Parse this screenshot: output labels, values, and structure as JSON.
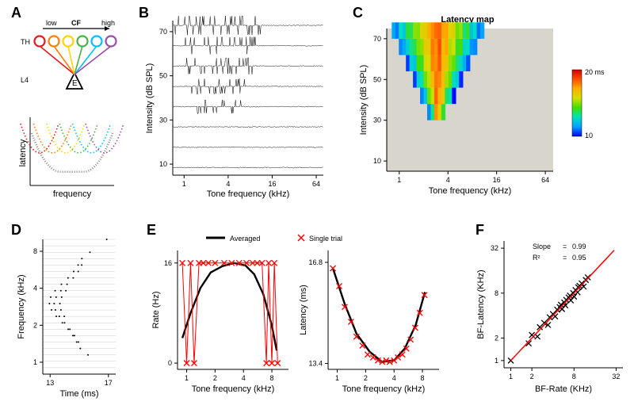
{
  "panelA": {
    "label": "A",
    "top_diagram": {
      "arrow_label": "CF",
      "low_label": "low",
      "high_label": "high",
      "row_labels": [
        "TH",
        "L4"
      ],
      "node_colors": [
        "#e41a1c",
        "#ff7f00",
        "#ffd500",
        "#4daf4a",
        "#00bfff",
        "#984ea3"
      ],
      "triangle_label": "E",
      "triangle_color": "#000000"
    },
    "bottom_diagram": {
      "xlabel": "frequency",
      "ylabel": "latency",
      "curve_colors": [
        "#e41a1c",
        "#ff7f00",
        "#ffd500",
        "#4daf4a",
        "#00bfff",
        "#984ea3"
      ],
      "envelope_color": "#888888"
    }
  },
  "panelB": {
    "label": "B",
    "xlabel": "Tone frequency (kHz)",
    "ylabel": "Intensity (dB SPL)",
    "x_ticks": [
      1,
      4,
      16,
      64
    ],
    "y_ticks": [
      10,
      30,
      50,
      70
    ],
    "x_log": true,
    "xlim": [
      0.7,
      80
    ],
    "ylim": [
      5,
      75
    ],
    "rows": [
      70,
      60,
      50,
      40,
      30,
      20,
      10,
      0
    ],
    "trace_color": "#000000",
    "background": "#ffffff"
  },
  "panelC": {
    "label": "C",
    "title": "Latency map",
    "xlabel": "Tone frequency (kHz)",
    "ylabel": "Intensity (dB SPL)",
    "x_ticks": [
      1,
      4,
      16,
      64
    ],
    "y_ticks": [
      10,
      30,
      50,
      70
    ],
    "x_log": true,
    "xlim": [
      0.7,
      80
    ],
    "ylim": [
      5,
      75
    ],
    "background_mask": "#d8d5cc",
    "cbar_labels": [
      "10",
      "20 ms"
    ],
    "cbar_stops": [
      "#0000ff",
      "#00a0ff",
      "#00e0c0",
      "#40e000",
      "#d0e000",
      "#ffb000",
      "#ff5000",
      "#d00000"
    ]
  },
  "panelD": {
    "label": "D",
    "xlabel": "Time (ms)",
    "ylabel": "Frequency (kHz)",
    "x_ticks": [
      13,
      17
    ],
    "y_ticks": [
      1,
      2,
      4,
      8
    ],
    "y_log": true,
    "xlim": [
      12.5,
      17.5
    ],
    "ylim": [
      0.8,
      10
    ],
    "dot_color": "#000000",
    "grid_color": "#cccccc",
    "n_rows": 22
  },
  "panelE": {
    "label": "E",
    "legend": {
      "averaged_label": "Averaged",
      "single_label": "Single trial",
      "avg_color": "#000000",
      "single_color": "#ff0000"
    },
    "left": {
      "xlabel": "Tone frequency (kHz)",
      "ylabel": "Rate (Hz)",
      "x_ticks": [
        1,
        2,
        4,
        8
      ],
      "y_ticks": [
        0,
        16
      ],
      "x_log": true,
      "xlim": [
        0.8,
        12
      ],
      "ylim": [
        -1,
        18
      ],
      "avg_curve": [
        [
          0.9,
          4
        ],
        [
          1.1,
          8
        ],
        [
          1.4,
          12
        ],
        [
          1.8,
          14.5
        ],
        [
          2.4,
          15.5
        ],
        [
          3.2,
          16
        ],
        [
          4.2,
          15.6
        ],
        [
          5.2,
          14.2
        ],
        [
          6.5,
          11
        ],
        [
          8,
          6
        ],
        [
          9,
          2
        ]
      ],
      "single_curve": [
        [
          0.9,
          16
        ],
        [
          1.0,
          0
        ],
        [
          1.1,
          16
        ],
        [
          1.2,
          0
        ],
        [
          1.35,
          16
        ],
        [
          1.5,
          16
        ],
        [
          1.7,
          16
        ],
        [
          2.0,
          16
        ],
        [
          2.5,
          16
        ],
        [
          3.0,
          16
        ],
        [
          3.6,
          16
        ],
        [
          4.3,
          16
        ],
        [
          5.0,
          16
        ],
        [
          5.6,
          16
        ],
        [
          6.3,
          16
        ],
        [
          7.0,
          0
        ],
        [
          7.4,
          16
        ],
        [
          8.0,
          0
        ],
        [
          8.5,
          16
        ],
        [
          9.2,
          0
        ]
      ]
    },
    "right": {
      "xlabel": "Tone frequency (kHz)",
      "ylabel": "Latency (ms)",
      "x_ticks": [
        1,
        2,
        4,
        8
      ],
      "y_ticks": [
        13.4,
        16.8
      ],
      "x_log": true,
      "xlim": [
        0.8,
        12
      ],
      "ylim": [
        13.2,
        17.2
      ],
      "avg_curve": [
        [
          0.9,
          16.6
        ],
        [
          1.2,
          15.4
        ],
        [
          1.6,
          14.4
        ],
        [
          2.2,
          13.8
        ],
        [
          3.0,
          13.45
        ],
        [
          4.0,
          13.5
        ],
        [
          5.2,
          13.9
        ],
        [
          6.8,
          14.7
        ],
        [
          8.5,
          15.8
        ]
      ],
      "single_points": [
        [
          0.9,
          16.6
        ],
        [
          1.05,
          16.0
        ],
        [
          1.2,
          15.3
        ],
        [
          1.4,
          14.8
        ],
        [
          1.6,
          14.3
        ],
        [
          1.85,
          14.0
        ],
        [
          2.1,
          13.7
        ],
        [
          2.4,
          13.6
        ],
        [
          2.7,
          13.5
        ],
        [
          3.0,
          13.45
        ],
        [
          3.3,
          13.5
        ],
        [
          3.6,
          13.45
        ],
        [
          4.0,
          13.5
        ],
        [
          4.4,
          13.6
        ],
        [
          4.9,
          13.7
        ],
        [
          5.4,
          13.9
        ],
        [
          6.0,
          14.2
        ],
        [
          6.7,
          14.6
        ],
        [
          7.5,
          15.1
        ],
        [
          8.4,
          15.7
        ]
      ]
    }
  },
  "panelF": {
    "label": "F",
    "xlabel": "BF-Rate (KHz)",
    "ylabel": "BF-Latency (KHz)",
    "x_ticks": [
      1,
      2,
      8,
      32
    ],
    "y_ticks": [
      1,
      2,
      8,
      32
    ],
    "log": true,
    "xlim": [
      0.8,
      40
    ],
    "ylim": [
      0.8,
      40
    ],
    "fit_color": "#ff0000",
    "point_color": "#000000",
    "annotations": {
      "slope_label": "Slope",
      "slope_value": "0.99",
      "r2_label": "R²",
      "r2_value": "0.95",
      "equals": "="
    },
    "points": [
      [
        1.0,
        1.0
      ],
      [
        1.8,
        1.7
      ],
      [
        2.0,
        2.2
      ],
      [
        2.4,
        2.1
      ],
      [
        2.6,
        2.8
      ],
      [
        3.0,
        3.2
      ],
      [
        3.4,
        3.0
      ],
      [
        3.6,
        3.8
      ],
      [
        4.0,
        4.2
      ],
      [
        4.3,
        3.9
      ],
      [
        4.6,
        4.8
      ],
      [
        5.0,
        5.2
      ],
      [
        5.4,
        4.9
      ],
      [
        5.8,
        6.0
      ],
      [
        6.2,
        6.5
      ],
      [
        6.7,
        7.0
      ],
      [
        7.2,
        6.4
      ],
      [
        7.8,
        8.0
      ],
      [
        8.4,
        8.8
      ],
      [
        9.0,
        8.2
      ],
      [
        9.6,
        10.0
      ],
      [
        10.3,
        10.8
      ],
      [
        11.0,
        9.8
      ],
      [
        11.8,
        12
      ],
      [
        12.6,
        13
      ],
      [
        7.0,
        7.4
      ],
      [
        8.0,
        7.2
      ],
      [
        9.2,
        9.6
      ],
      [
        6.0,
        5.5
      ],
      [
        5.2,
        5.6
      ]
    ]
  }
}
